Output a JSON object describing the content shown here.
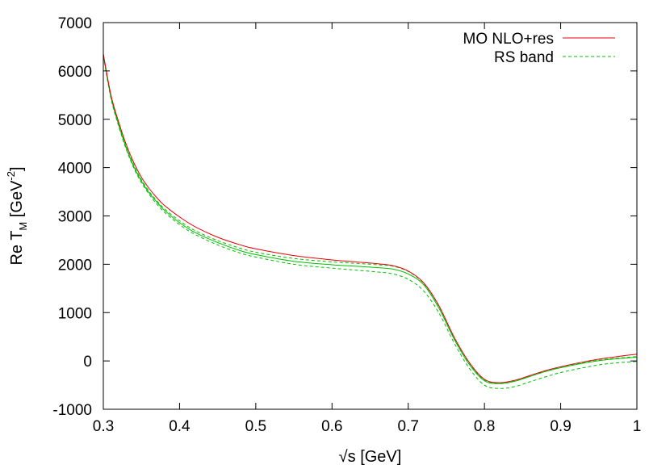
{
  "chart_data": {
    "type": "line",
    "title": "",
    "xlabel": "√s [GeV]",
    "ylabel": {
      "prefix": "Re T",
      "subscript": "M",
      "unit_open": " [GeV",
      "superscript": "-2",
      "unit_close": "]"
    },
    "xlim": [
      0.3,
      1.0
    ],
    "ylim": [
      -1000,
      7000
    ],
    "xticks": [
      0.3,
      0.4,
      0.5,
      0.6,
      0.7,
      0.8,
      0.9,
      1.0
    ],
    "xtick_labels": [
      "0.3",
      "0.4",
      "0.5",
      "0.6",
      "0.7",
      "0.8",
      "0.9",
      "1"
    ],
    "yticks": [
      -1000,
      0,
      1000,
      2000,
      3000,
      4000,
      5000,
      6000,
      7000
    ],
    "ytick_labels": [
      "-1000",
      "0",
      "1000",
      "2000",
      "3000",
      "4000",
      "5000",
      "6000",
      "7000"
    ],
    "grid": false,
    "legend_position": "top-right",
    "legend": [
      {
        "label": "MO NLO+res",
        "color": "#e8000b",
        "dash": "solid"
      },
      {
        "label": "RS band",
        "color": "#00c000",
        "dash": "dashed"
      }
    ],
    "series": [
      {
        "name": "MO NLO+res",
        "color": "#e8000b",
        "dash": "solid",
        "x": [
          0.3,
          0.31,
          0.32,
          0.33,
          0.34,
          0.35,
          0.36,
          0.37,
          0.38,
          0.4,
          0.42,
          0.45,
          0.48,
          0.5,
          0.55,
          0.6,
          0.63,
          0.66,
          0.68,
          0.7,
          0.72,
          0.74,
          0.76,
          0.78,
          0.8,
          0.82,
          0.84,
          0.86,
          0.88,
          0.9,
          0.93,
          0.96,
          1.0
        ],
        "y": [
          6350,
          5500,
          4950,
          4480,
          4100,
          3800,
          3570,
          3380,
          3220,
          2980,
          2780,
          2560,
          2400,
          2320,
          2180,
          2090,
          2050,
          2010,
          1970,
          1860,
          1620,
          1150,
          500,
          -30,
          -380,
          -450,
          -400,
          -300,
          -200,
          -120,
          -20,
          60,
          140
        ]
      },
      {
        "name": "RS band upper",
        "color": "#00c000",
        "dash": "dashed",
        "x": [
          0.3,
          0.31,
          0.32,
          0.33,
          0.34,
          0.35,
          0.36,
          0.37,
          0.38,
          0.4,
          0.42,
          0.45,
          0.48,
          0.5,
          0.55,
          0.6,
          0.63,
          0.66,
          0.68,
          0.7,
          0.72,
          0.74,
          0.76,
          0.78,
          0.8,
          0.82,
          0.84,
          0.86,
          0.88,
          0.9,
          0.93,
          0.96,
          1.0
        ],
        "y": [
          6350,
          5480,
          4920,
          4440,
          4050,
          3750,
          3510,
          3320,
          3150,
          2900,
          2700,
          2490,
          2330,
          2250,
          2120,
          2050,
          2020,
          1990,
          1960,
          1850,
          1610,
          1140,
          490,
          -40,
          -390,
          -460,
          -410,
          -310,
          -210,
          -130,
          -35,
          35,
          90
        ]
      },
      {
        "name": "RS band lower",
        "color": "#00c000",
        "dash": "dashed",
        "x": [
          0.3,
          0.31,
          0.32,
          0.33,
          0.34,
          0.35,
          0.36,
          0.37,
          0.38,
          0.4,
          0.42,
          0.45,
          0.48,
          0.5,
          0.55,
          0.6,
          0.63,
          0.66,
          0.68,
          0.7,
          0.72,
          0.74,
          0.76,
          0.78,
          0.8,
          0.82,
          0.84,
          0.86,
          0.88,
          0.9,
          0.93,
          0.96,
          1.0
        ],
        "y": [
          6300,
          5430,
          4860,
          4380,
          3990,
          3690,
          3450,
          3250,
          3080,
          2820,
          2620,
          2400,
          2230,
          2150,
          2000,
          1920,
          1880,
          1840,
          1800,
          1690,
          1450,
          1000,
          380,
          -150,
          -500,
          -570,
          -530,
          -430,
          -330,
          -240,
          -140,
          -60,
          -10
        ]
      },
      {
        "name": "RS band central",
        "color": "#00c000",
        "dash": "solid",
        "x": [
          0.3,
          0.31,
          0.32,
          0.33,
          0.34,
          0.35,
          0.36,
          0.37,
          0.38,
          0.4,
          0.42,
          0.45,
          0.48,
          0.5,
          0.55,
          0.6,
          0.63,
          0.66,
          0.68,
          0.7,
          0.72,
          0.74,
          0.76,
          0.78,
          0.8,
          0.82,
          0.84,
          0.86,
          0.88,
          0.9,
          0.93,
          0.96,
          1.0
        ],
        "y": [
          6330,
          5460,
          4890,
          4410,
          4020,
          3720,
          3480,
          3290,
          3120,
          2860,
          2660,
          2450,
          2280,
          2200,
          2060,
          1990,
          1960,
          1930,
          1900,
          1800,
          1580,
          1100,
          460,
          -70,
          -410,
          -470,
          -420,
          -320,
          -220,
          -140,
          -45,
          25,
          80
        ]
      }
    ]
  }
}
